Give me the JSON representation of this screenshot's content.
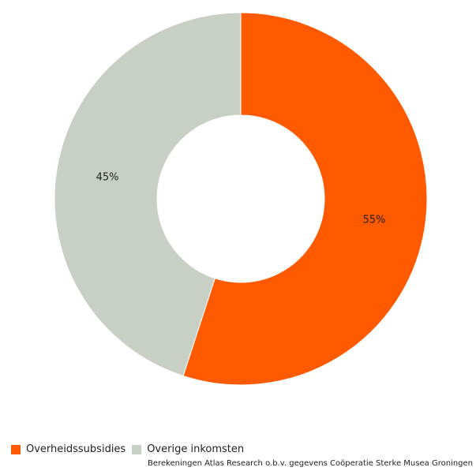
{
  "chart_data": {
    "type": "pie",
    "variant": "donut",
    "slices": [
      {
        "label": "Overheidssubsidies",
        "value": 55,
        "display": "55%",
        "color": "#ff5a00"
      },
      {
        "label": "Overige inkomsten",
        "value": 45,
        "display": "45%",
        "color": "#c8d0c6"
      }
    ],
    "legend_placement": "bottom-left",
    "source": "Berekeningen Atlas Research o.b.v. gegevens Coöperatie Sterke Musea Groningen"
  }
}
